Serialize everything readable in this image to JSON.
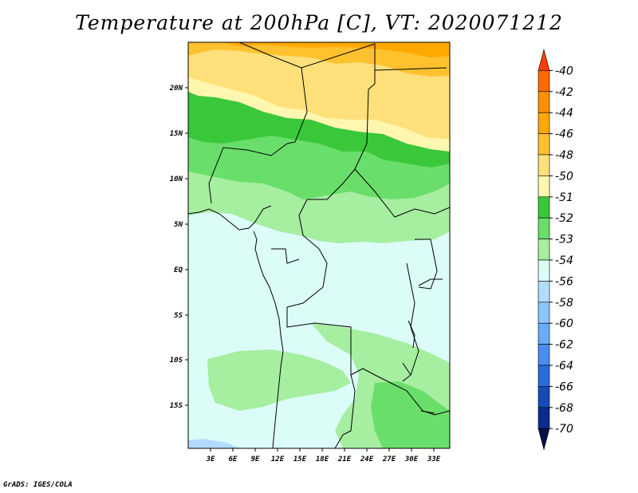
{
  "title": "Temperature at 200hPa [C], VT: 2020071212",
  "credit": "GrADS: IGES/COLA",
  "axes": {
    "x_ticks": [
      "3E",
      "6E",
      "9E",
      "12E",
      "15E",
      "18E",
      "21E",
      "24E",
      "27E",
      "30E",
      "33E"
    ],
    "y_ticks": [
      "20N",
      "15N",
      "10N",
      "5N",
      "EQ",
      "5S",
      "10S",
      "15S"
    ]
  },
  "colorbar": {
    "labels": [
      "-40",
      "-42",
      "-44",
      "-46",
      "-48",
      "-50",
      "-51",
      "-52",
      "-53",
      "-54",
      "-56",
      "-58",
      "-60",
      "-62",
      "-64",
      "-66",
      "-68",
      "-70"
    ],
    "colors": [
      "#ff3d00",
      "#ff6a00",
      "#ff8f00",
      "#ffa800",
      "#ffc12e",
      "#ffe07a",
      "#fff6b0",
      "#3ac83a",
      "#6ade6a",
      "#a6eea0",
      "#dcfcf8",
      "#b2dcff",
      "#8cc6ff",
      "#6aacfa",
      "#4a8df0",
      "#2a6cdc",
      "#164bb8",
      "#0a2c8c",
      "#02104a"
    ]
  },
  "chart_data": {
    "type": "heatmap",
    "variable": "Temperature at 200hPa [C]",
    "valid_time": "2020071212",
    "lon_range": [
      0,
      35
    ],
    "lat_range": [
      -20,
      25
    ],
    "levels": [
      -70,
      -68,
      -66,
      -64,
      -62,
      -60,
      -58,
      -56,
      -54,
      -53,
      -52,
      -51,
      -50,
      -48,
      -46,
      -44,
      -42,
      -40
    ]
  }
}
